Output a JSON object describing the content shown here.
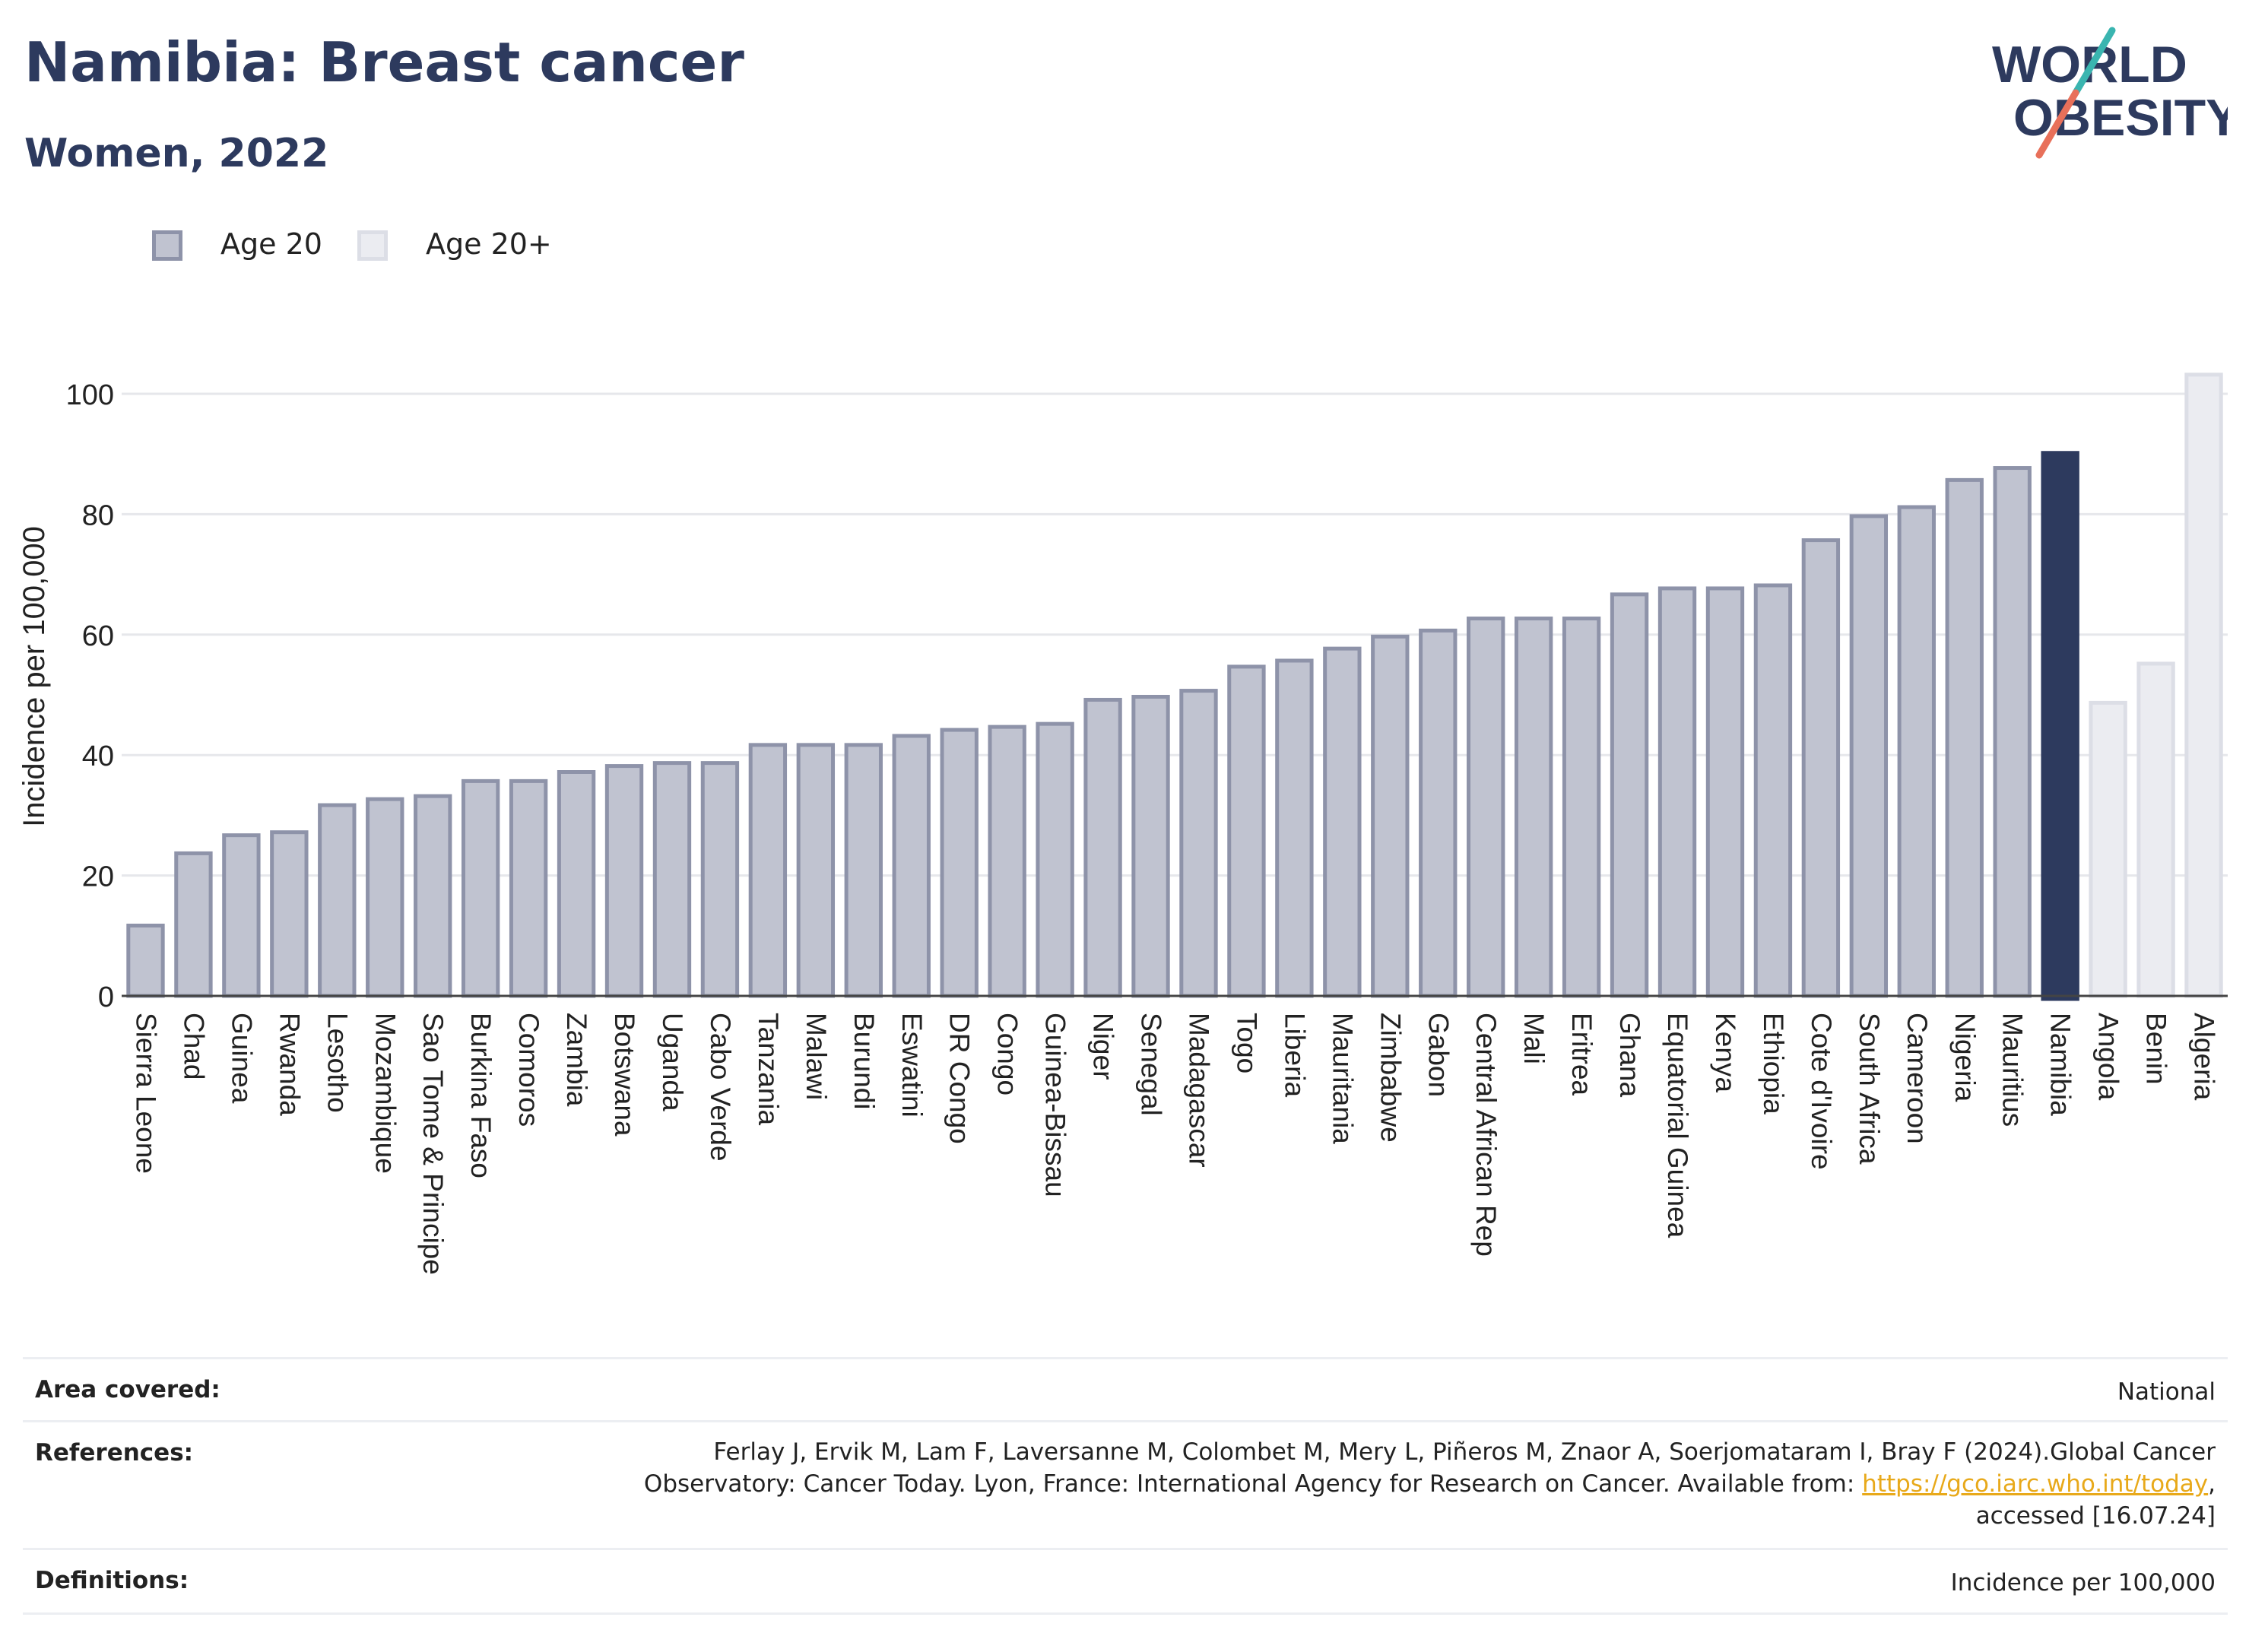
{
  "header": {
    "title": "Namibia: Breast cancer",
    "subtitle": "Women, 2022"
  },
  "logo": {
    "line1": "WORLD",
    "line2": "OBESITY",
    "colors": {
      "text": "#2d3a5e",
      "slash_top": "#3ab5b0",
      "slash_bottom": "#e8705a"
    }
  },
  "legend": [
    {
      "label": "Age 20",
      "color": "#c0c3d0",
      "border": "#8e93a9"
    },
    {
      "label": "Age 20+",
      "color": "#ebecf1",
      "border": "#dcdee6"
    }
  ],
  "chart_data": {
    "type": "bar",
    "ylabel": "Incidence per 100,000",
    "xlabel": "",
    "ylim": [
      0,
      105
    ],
    "yticks": [
      0,
      20,
      40,
      60,
      80,
      100
    ],
    "grid": true,
    "legend_position": "top-left",
    "highlight": "Namibia",
    "colors": {
      "age20": "#c0c3d0",
      "age20_border": "#8e93a9",
      "age20plus": "#ebecf1",
      "age20plus_border": "#dcdee6",
      "highlight": "#2d3a5e"
    },
    "bars": [
      {
        "category": "Sierra Leone",
        "value": 12,
        "series": "Age 20"
      },
      {
        "category": "Chad",
        "value": 24,
        "series": "Age 20"
      },
      {
        "category": "Guinea",
        "value": 27,
        "series": "Age 20"
      },
      {
        "category": "Rwanda",
        "value": 27.5,
        "series": "Age 20"
      },
      {
        "category": "Lesotho",
        "value": 32,
        "series": "Age 20"
      },
      {
        "category": "Mozambique",
        "value": 33,
        "series": "Age 20"
      },
      {
        "category": "Sao Tome & Principe",
        "value": 33.5,
        "series": "Age 20"
      },
      {
        "category": "Burkina Faso",
        "value": 36,
        "series": "Age 20"
      },
      {
        "category": "Comoros",
        "value": 36,
        "series": "Age 20"
      },
      {
        "category": "Zambia",
        "value": 37.5,
        "series": "Age 20"
      },
      {
        "category": "Botswana",
        "value": 38.5,
        "series": "Age 20"
      },
      {
        "category": "Uganda",
        "value": 39,
        "series": "Age 20"
      },
      {
        "category": "Cabo Verde",
        "value": 39,
        "series": "Age 20"
      },
      {
        "category": "Tanzania",
        "value": 42,
        "series": "Age 20"
      },
      {
        "category": "Malawi",
        "value": 42,
        "series": "Age 20"
      },
      {
        "category": "Burundi",
        "value": 42,
        "series": "Age 20"
      },
      {
        "category": "Eswatini",
        "value": 43.5,
        "series": "Age 20"
      },
      {
        "category": "DR Congo",
        "value": 44.5,
        "series": "Age 20"
      },
      {
        "category": "Congo",
        "value": 45,
        "series": "Age 20"
      },
      {
        "category": "Guinea-Bissau",
        "value": 45.5,
        "series": "Age 20"
      },
      {
        "category": "Niger",
        "value": 49.5,
        "series": "Age 20"
      },
      {
        "category": "Senegal",
        "value": 50,
        "series": "Age 20"
      },
      {
        "category": "Madagascar",
        "value": 51,
        "series": "Age 20"
      },
      {
        "category": "Togo",
        "value": 55,
        "series": "Age 20"
      },
      {
        "category": "Liberia",
        "value": 56,
        "series": "Age 20"
      },
      {
        "category": "Mauritania",
        "value": 58,
        "series": "Age 20"
      },
      {
        "category": "Zimbabwe",
        "value": 60,
        "series": "Age 20"
      },
      {
        "category": "Gabon",
        "value": 61,
        "series": "Age 20"
      },
      {
        "category": "Central African Rep",
        "value": 63,
        "series": "Age 20"
      },
      {
        "category": "Mali",
        "value": 63,
        "series": "Age 20"
      },
      {
        "category": "Eritrea",
        "value": 63,
        "series": "Age 20"
      },
      {
        "category": "Ghana",
        "value": 67,
        "series": "Age 20"
      },
      {
        "category": "Equatorial Guinea",
        "value": 68,
        "series": "Age 20"
      },
      {
        "category": "Kenya",
        "value": 68,
        "series": "Age 20"
      },
      {
        "category": "Ethiopia",
        "value": 68.5,
        "series": "Age 20"
      },
      {
        "category": "Cote d'Ivoire",
        "value": 76,
        "series": "Age 20"
      },
      {
        "category": "South Africa",
        "value": 80,
        "series": "Age 20"
      },
      {
        "category": "Cameroon",
        "value": 81.5,
        "series": "Age 20"
      },
      {
        "category": "Nigeria",
        "value": 86,
        "series": "Age 20"
      },
      {
        "category": "Mauritius",
        "value": 88,
        "series": "Age 20"
      },
      {
        "category": "Namibia",
        "value": 90.5,
        "series": "Age 20"
      },
      {
        "category": "Angola",
        "value": 49,
        "series": "Age 20+"
      },
      {
        "category": "Benin",
        "value": 55.5,
        "series": "Age 20+"
      },
      {
        "category": "Algeria",
        "value": 103.5,
        "series": "Age 20+"
      }
    ]
  },
  "footer": {
    "area": {
      "label": "Area covered:",
      "value": "National"
    },
    "references": {
      "label": "References:",
      "line1": "Ferlay J, Ervik M, Lam F, Laversanne M, Colombet M, Mery L, Piñeros M, Znaor A, Soerjomataram I, Bray F (2024).Global Cancer",
      "line2_prefix": "Observatory: Cancer Today. Lyon, France: International Agency for Research on Cancer. Available from: ",
      "link": "https://gco.iarc.who.int/today",
      "line2_suffix": ",",
      "line3": "accessed [16.07.24]"
    },
    "definitions": {
      "label": "Definitions:",
      "value": "Incidence per 100,000"
    }
  }
}
